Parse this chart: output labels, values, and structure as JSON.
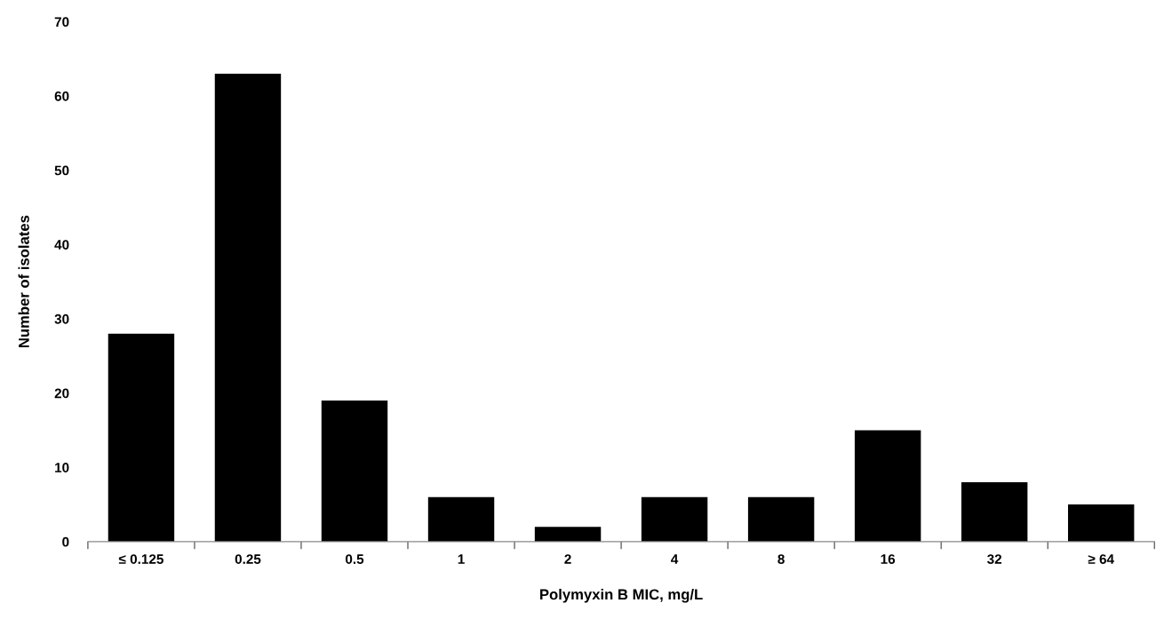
{
  "chart_data": {
    "type": "bar",
    "xlabel": "Polymyxin B MIC, mg/L",
    "ylabel": "Number of isolates",
    "categories": [
      "≤ 0.125",
      "0.25",
      "0.5",
      "1",
      "2",
      "4",
      "8",
      "16",
      "32",
      "≥ 64"
    ],
    "values": [
      28,
      63,
      19,
      6,
      2,
      6,
      6,
      15,
      8,
      5
    ],
    "color": "#000000",
    "ylim": [
      0,
      70
    ],
    "yticks": [
      0,
      10,
      20,
      30,
      40,
      50,
      60,
      70
    ],
    "grid": false,
    "legend": false
  }
}
